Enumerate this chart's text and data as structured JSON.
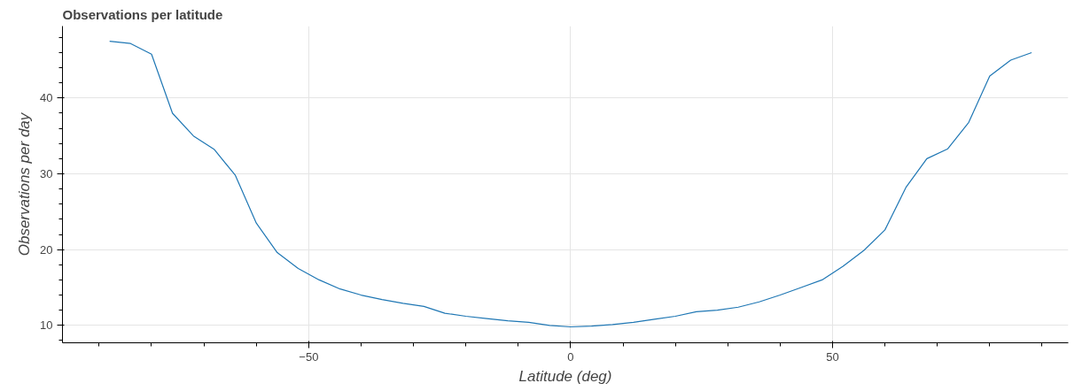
{
  "chart_data": {
    "type": "line",
    "title": "Observations per latitude",
    "xlabel": "Latitude (deg)",
    "ylabel": "Observations per day",
    "x": [
      -88,
      -84,
      -80,
      -76,
      -72,
      -68,
      -64,
      -60,
      -56,
      -52,
      -48,
      -44,
      -40,
      -36,
      -32,
      -28,
      -24,
      -20,
      -16,
      -12,
      -8,
      -4,
      0,
      4,
      8,
      12,
      16,
      20,
      24,
      28,
      32,
      36,
      40,
      44,
      48,
      52,
      56,
      60,
      64,
      68,
      72,
      76,
      80,
      84,
      88
    ],
    "series": [
      {
        "color": "#1f77b4",
        "values": [
          47.5,
          47.2,
          45.8,
          38,
          35,
          33.2,
          29.8,
          23.5,
          19.6,
          17.5,
          16,
          14.8,
          14,
          13.4,
          12.9,
          12.5,
          11.6,
          11.2,
          10.9,
          10.6,
          10.4,
          10.0,
          9.8,
          9.9,
          10.1,
          10.4,
          10.8,
          11.2,
          11.8,
          12.0,
          12.4,
          13.1,
          14.0,
          15.0,
          16.0,
          17.8,
          19.9,
          22.6,
          28.2,
          32.0,
          33.3,
          36.8,
          42.9,
          45.0,
          46.0
        ]
      }
    ],
    "xlim": [
      -97,
      95
    ],
    "ylim": [
      7.7,
      49.5
    ],
    "xticks": [
      {
        "value": -90,
        "label": null
      },
      {
        "value": -80,
        "label": null
      },
      {
        "value": -70,
        "label": null
      },
      {
        "value": -60,
        "label": null
      },
      -50,
      {
        "value": -40,
        "label": null
      },
      {
        "value": -30,
        "label": null
      },
      {
        "value": -20,
        "label": null
      },
      {
        "value": -10,
        "label": null
      },
      0,
      {
        "value": 10,
        "label": null
      },
      {
        "value": 20,
        "label": null
      },
      {
        "value": 30,
        "label": null
      },
      {
        "value": 40,
        "label": null
      },
      50,
      {
        "value": 60,
        "label": null
      },
      {
        "value": 70,
        "label": null
      },
      {
        "value": 80,
        "label": null
      },
      {
        "value": 90,
        "label": null
      }
    ],
    "yticks": [
      {
        "value": 8,
        "label": null
      },
      10,
      {
        "value": 12,
        "label": null
      },
      {
        "value": 14,
        "label": null
      },
      {
        "value": 16,
        "label": null
      },
      {
        "value": 18,
        "label": null
      },
      20,
      {
        "value": 22,
        "label": null
      },
      {
        "value": 24,
        "label": null
      },
      {
        "value": 26,
        "label": null
      },
      {
        "value": 28,
        "label": null
      },
      30,
      {
        "value": 32,
        "label": null
      },
      {
        "value": 34,
        "label": null
      },
      {
        "value": 36,
        "label": null
      },
      {
        "value": 38,
        "label": null
      },
      40,
      {
        "value": 42,
        "label": null
      },
      {
        "value": 44,
        "label": null
      },
      {
        "value": 46,
        "label": null
      },
      {
        "value": 48,
        "label": null
      }
    ],
    "grid": true,
    "line_style": "solid"
  }
}
